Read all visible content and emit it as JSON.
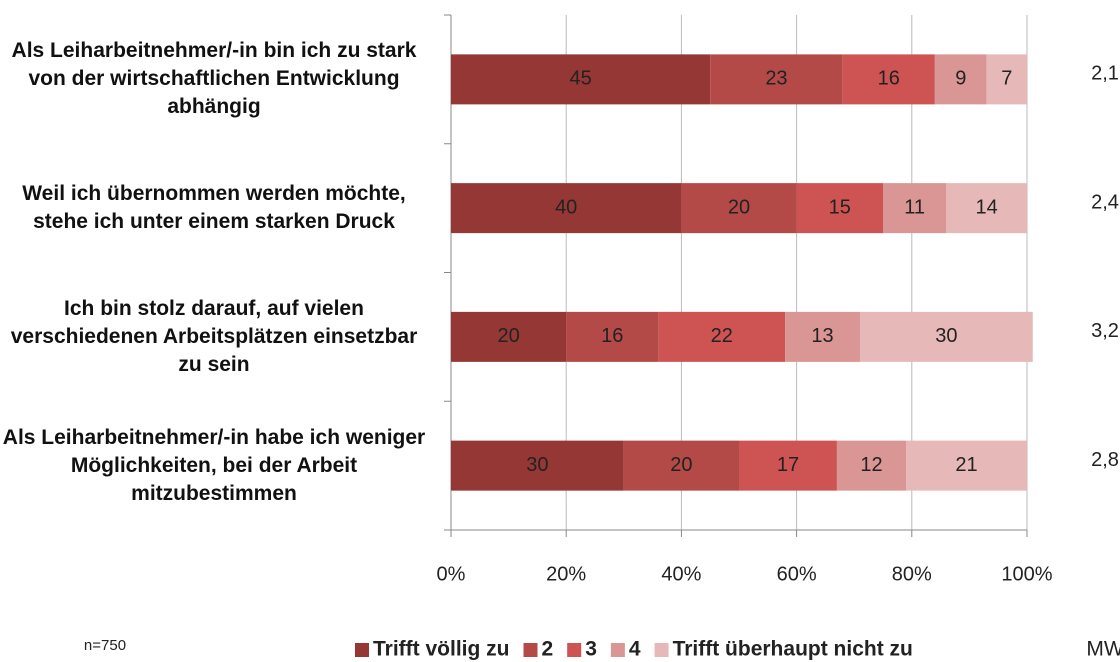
{
  "chart_data": {
    "type": "stacked-barh",
    "categories": [
      "Als Leiharbeitnehmer/-in bin ich zu stark von der wirtschaftlichen Entwicklung abhängig",
      "Weil ich übernommen werden möchte, stehe ich unter einem starken Druck",
      "Ich bin stolz darauf, auf vielen verschiedenen Arbeitsplätzen einsetzbar zu sein",
      "Als Leiharbeitnehmer/-in habe ich weniger Möglichkeiten, bei der Arbeit mitzubestimmen"
    ],
    "series": [
      {
        "name": "Trifft völlig zu",
        "color": "#953735",
        "values": [
          45,
          40,
          20,
          30
        ]
      },
      {
        "name": "2",
        "color": "#b44a47",
        "values": [
          23,
          20,
          16,
          20
        ]
      },
      {
        "name": "3",
        "color": "#cd5452",
        "values": [
          16,
          15,
          22,
          17
        ]
      },
      {
        "name": "4",
        "color": "#d99694",
        "values": [
          9,
          11,
          13,
          12
        ]
      },
      {
        "name": "Trifft überhaupt nicht zu",
        "color": "#e6b9b8",
        "values": [
          7,
          14,
          30,
          21
        ]
      }
    ],
    "xlim": [
      0,
      100
    ],
    "xticks": [
      {
        "value": 0,
        "label": "0%"
      },
      {
        "value": 20,
        "label": "20%"
      },
      {
        "value": 40,
        "label": "40%"
      },
      {
        "value": 60,
        "label": "60%"
      },
      {
        "value": 80,
        "label": "80%"
      },
      {
        "value": 100,
        "label": "100%"
      }
    ],
    "grid": true,
    "mean_title": "MW",
    "means": [
      2.1,
      2.4,
      3.2,
      2.8
    ],
    "mean_labels": [
      "2,1",
      "2,4",
      "3,2",
      "2,8"
    ],
    "note": "n=750"
  }
}
